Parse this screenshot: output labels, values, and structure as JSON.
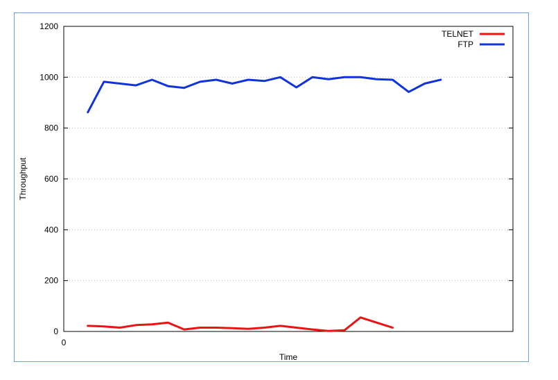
{
  "chart_data": {
    "type": "line",
    "title": "",
    "xlabel": "Time",
    "ylabel": "Throughput",
    "x_tick_labels": [
      "0"
    ],
    "y_ticks": [
      0,
      200,
      400,
      600,
      800,
      1000,
      1200
    ],
    "ylim": [
      0,
      1200
    ],
    "xlim": [
      0,
      28
    ],
    "grid": true,
    "legend_position": "top-right",
    "x": [
      1.5,
      2.5,
      3.5,
      4.5,
      5.5,
      6.5,
      7.5,
      8.5,
      9.5,
      10.5,
      11.5,
      12.5,
      13.5,
      14.5,
      15.5,
      16.5,
      17.5,
      18.5,
      19.5,
      20.5,
      21.5,
      22.5,
      23.5
    ],
    "series": [
      {
        "name": "TELNET",
        "color": "#ee1111",
        "values": [
          22,
          20,
          15,
          25,
          28,
          35,
          8,
          15,
          15,
          13,
          10,
          15,
          22,
          15,
          8,
          2,
          5,
          55,
          35,
          15,
          null,
          null,
          null
        ]
      },
      {
        "name": "FTP",
        "color": "#1133dd",
        "values": [
          862,
          982,
          975,
          968,
          990,
          965,
          958,
          982,
          990,
          975,
          990,
          985,
          1000,
          960,
          1000,
          992,
          1000,
          1000,
          992,
          990,
          942,
          975,
          990
        ]
      }
    ]
  }
}
